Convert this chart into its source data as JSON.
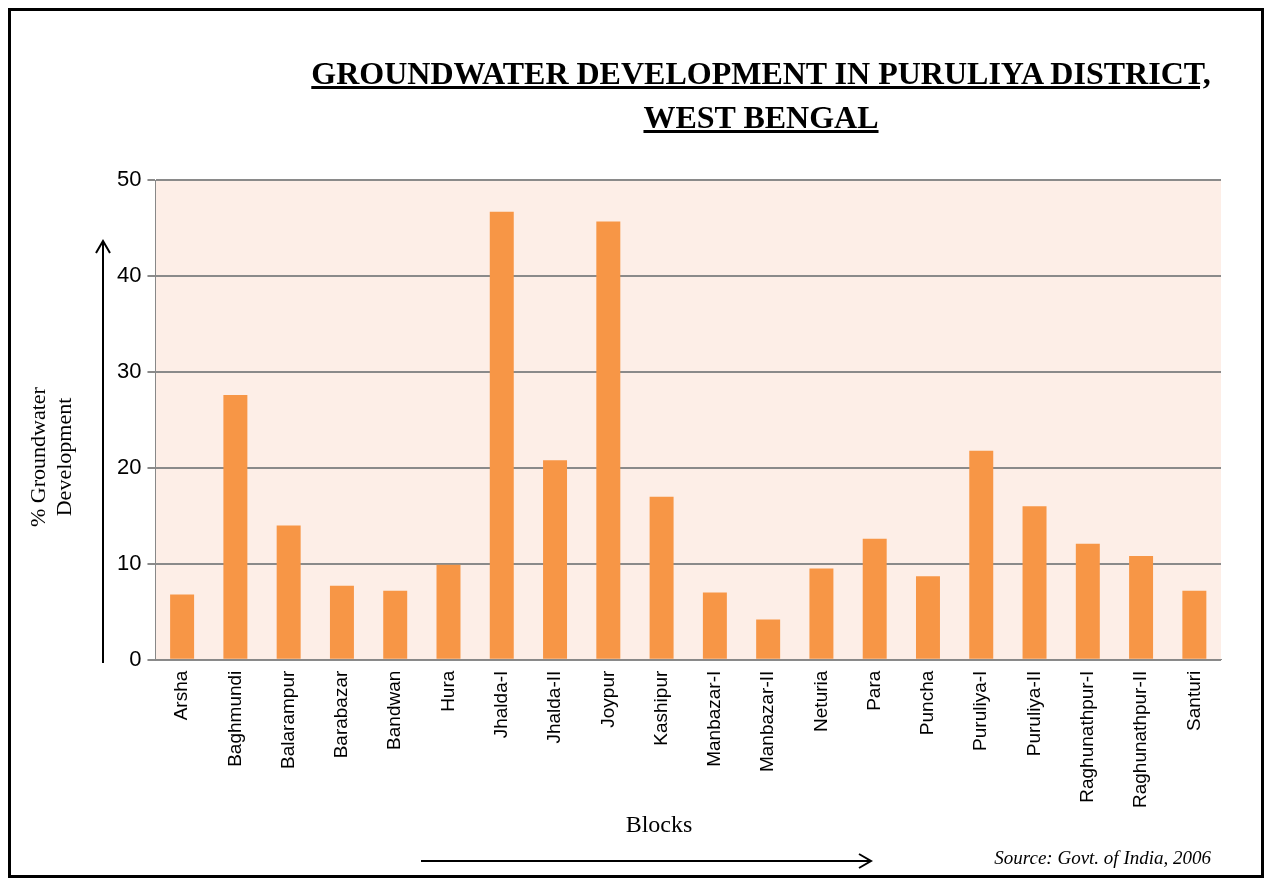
{
  "chart_data": {
    "type": "bar",
    "title": "GROUNDWATER DEVELOPMENT IN PURULIYA DISTRICT, WEST BENGAL",
    "xlabel": "Blocks",
    "ylabel": "% Groundwater Development",
    "categories": [
      "Arsha",
      "Baghmundi",
      "Balarampur",
      "Barabazar",
      "Bandwan",
      "Hura",
      "Jhalda-I",
      "Jhalda-II",
      "Joypur",
      "Kashipur",
      "Manbazar-I",
      "Manbazar-II",
      "Neturia",
      "Para",
      "Puncha",
      "Puruliya-I",
      "Puruliya-II",
      "Raghunathpur-I",
      "Raghunathpur-II",
      "Santuri"
    ],
    "values": [
      6.8,
      27.6,
      14.0,
      7.7,
      7.2,
      9.9,
      46.7,
      20.8,
      45.7,
      17.0,
      7.0,
      4.2,
      9.5,
      12.6,
      8.7,
      21.8,
      16.0,
      12.1,
      10.8,
      7.2
    ],
    "color": "#f79646",
    "ylim": [
      0,
      50
    ],
    "yticks": [
      0,
      10,
      20,
      30,
      40,
      50
    ],
    "grid": "y",
    "legend": false,
    "annotations": [
      "Source: Govt. of India, 2006"
    ]
  }
}
